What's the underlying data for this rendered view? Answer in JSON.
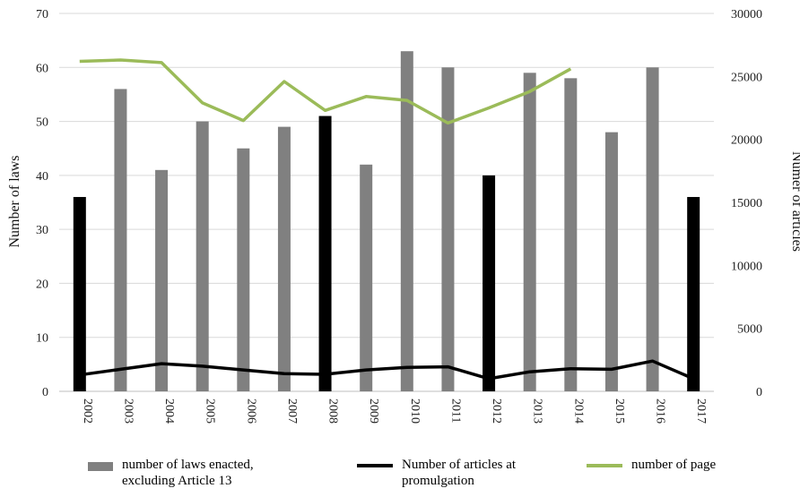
{
  "chart_data": {
    "type": "bar+line",
    "categories": [
      "2002",
      "2003",
      "2004",
      "2005",
      "2006",
      "2007",
      "2008",
      "2009",
      "2010",
      "2011",
      "2012",
      "2013",
      "2014",
      "2015",
      "2016",
      "2017"
    ],
    "ylabel_left": "Number of laws",
    "ylabel_right": "Numer of articles",
    "ylim_left": [
      0,
      70
    ],
    "ylim_right": [
      0,
      30000
    ],
    "yticks_left": [
      "0",
      "10",
      "20",
      "30",
      "40",
      "50",
      "60",
      "70"
    ],
    "yticks_right": [
      "0",
      "5000",
      "10000",
      "15000",
      "20000",
      "25000",
      "30000"
    ],
    "grid": true,
    "series": [
      {
        "name": "number of laws enacted, excluding Article 13",
        "type": "bar",
        "axis": "left",
        "values": [
          36,
          56,
          41,
          50,
          45,
          49,
          51,
          42,
          63,
          60,
          40,
          59,
          58,
          48,
          60,
          36
        ],
        "highlight_years": [
          "2002",
          "2008",
          "2012",
          "2017"
        ],
        "color": "#808080",
        "highlight_color": "#000000"
      },
      {
        "name": "Number of articles at promulgation",
        "type": "line",
        "axis": "right",
        "values": [
          1300,
          1750,
          2200,
          2000,
          1700,
          1400,
          1350,
          1700,
          1900,
          1950,
          1000,
          1550,
          1800,
          1750,
          2400,
          1000
        ],
        "color": "#000000"
      },
      {
        "name": "number of page",
        "type": "line",
        "axis": "right",
        "values": [
          26200,
          26300,
          26100,
          22900,
          21500,
          24600,
          22300,
          23400,
          23100,
          21300,
          22500,
          23800,
          25600,
          null,
          null,
          null
        ],
        "color": "#9bbb59"
      }
    ]
  },
  "legend": {
    "bar_label": "number of laws enacted,\nexcluding Article 13",
    "articles_label": "Number of articles at\npromulgation",
    "pages_label": "number of page"
  }
}
